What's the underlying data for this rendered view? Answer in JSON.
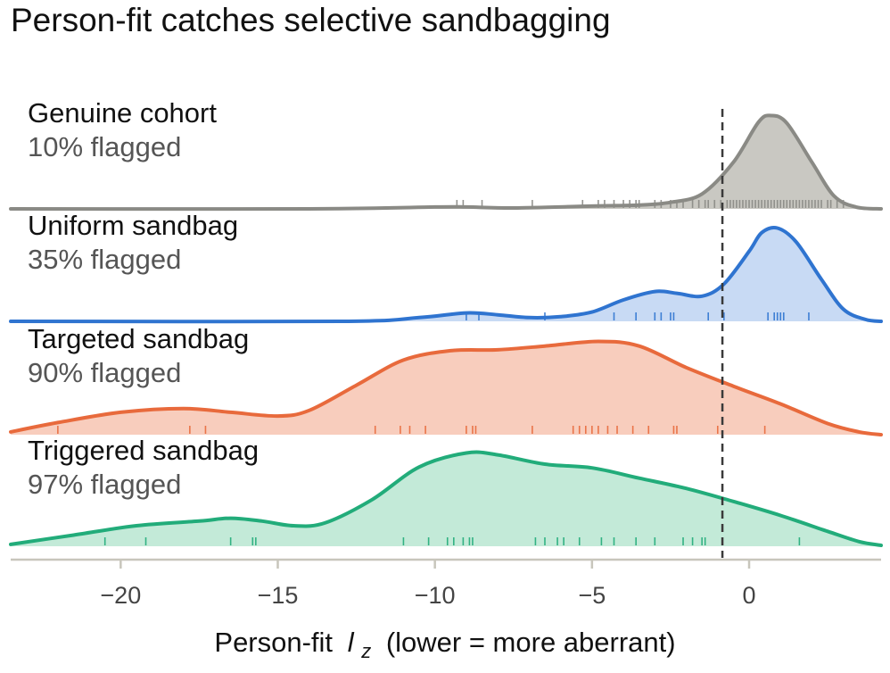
{
  "title": "Person-fit catches selective sandbagging",
  "chart_data": {
    "type": "ridgeline",
    "title": "Person-fit catches selective sandbagging",
    "xlabel": "Person-fit",
    "xlabel_symbol": "l",
    "xlabel_subscript": "z",
    "xlabel_suffix": "(lower = more aberrant)",
    "xlim": [
      -23.5,
      4.2
    ],
    "xticks": [
      -20,
      -15,
      -10,
      -5,
      0
    ],
    "xtick_labels": [
      "−20",
      "−15",
      "−10",
      "−5",
      "0"
    ],
    "threshold": -0.85,
    "threshold_style": "dashed",
    "grid": false,
    "series": [
      {
        "name": "Genuine cohort",
        "flag_label": "10% flagged",
        "color": "#8a8a85",
        "fill": "#c9c8c2",
        "peak_height": 0.95,
        "density": [
          [
            -23.5,
            0.0
          ],
          [
            -14,
            0.0
          ],
          [
            -10,
            0.02
          ],
          [
            -9,
            0.02
          ],
          [
            -7.5,
            0.01
          ],
          [
            -5,
            0.03
          ],
          [
            -3.5,
            0.04
          ],
          [
            -2.5,
            0.07
          ],
          [
            -1.5,
            0.16
          ],
          [
            -0.5,
            0.5
          ],
          [
            0.3,
            0.93
          ],
          [
            0.7,
            1.0
          ],
          [
            1.2,
            0.92
          ],
          [
            2.0,
            0.5
          ],
          [
            2.7,
            0.14
          ],
          [
            3.4,
            0.02
          ],
          [
            4.2,
            0.0
          ]
        ],
        "rug": [
          -9.3,
          -9.1,
          -8.5,
          -6.9,
          -5.3,
          -4.8,
          -4.6,
          -4.3,
          -4.0,
          -3.8,
          -3.6,
          -3.5,
          -3.0,
          -2.8,
          -2.5,
          -2.3,
          -2.1,
          -1.8,
          -1.6,
          -1.4,
          -1.3,
          -1.1,
          -0.9,
          -0.7,
          -0.6,
          -0.5,
          -0.4,
          -0.3,
          -0.2,
          -0.1,
          0.0,
          0.1,
          0.2,
          0.3,
          0.4,
          0.5,
          0.6,
          0.7,
          0.8,
          0.9,
          1.0,
          1.1,
          1.2,
          1.3,
          1.4,
          1.5,
          1.6,
          1.7,
          1.8,
          1.9,
          2.0,
          2.1,
          2.2,
          2.3,
          2.5,
          2.6,
          2.8,
          3.0
        ]
      },
      {
        "name": "Uniform sandbag",
        "flag_label": "35% flagged",
        "color": "#2f74d0",
        "fill": "#c8daf4",
        "peak_height": 0.95,
        "density": [
          [
            -23.5,
            0.0
          ],
          [
            -13,
            0.0
          ],
          [
            -10.5,
            0.04
          ],
          [
            -9,
            0.09
          ],
          [
            -8,
            0.07
          ],
          [
            -7,
            0.04
          ],
          [
            -6,
            0.05
          ],
          [
            -5,
            0.1
          ],
          [
            -4,
            0.23
          ],
          [
            -3,
            0.32
          ],
          [
            -2.3,
            0.3
          ],
          [
            -1.5,
            0.27
          ],
          [
            -0.8,
            0.4
          ],
          [
            0,
            0.75
          ],
          [
            0.4,
            0.95
          ],
          [
            0.9,
            1.0
          ],
          [
            1.5,
            0.85
          ],
          [
            2.3,
            0.45
          ],
          [
            3.0,
            0.13
          ],
          [
            3.7,
            0.02
          ],
          [
            4.2,
            0.0
          ]
        ],
        "rug": [
          -9.0,
          -8.6,
          -6.5,
          -4.3,
          -3.6,
          -3.0,
          -2.8,
          -2.5,
          -2.4,
          -1.3,
          -0.8,
          0.6,
          0.8,
          0.9,
          1.0,
          1.1,
          1.9
        ]
      },
      {
        "name": "Targeted sandbag",
        "flag_label": "90% flagged",
        "color": "#e86a3c",
        "fill": "#f8cdbd",
        "peak_height": 0.95,
        "density": [
          [
            -23.5,
            0.03
          ],
          [
            -22,
            0.13
          ],
          [
            -20,
            0.24
          ],
          [
            -18,
            0.28
          ],
          [
            -16.5,
            0.24
          ],
          [
            -15,
            0.2
          ],
          [
            -14,
            0.26
          ],
          [
            -12.5,
            0.53
          ],
          [
            -11,
            0.8
          ],
          [
            -9.5,
            0.9
          ],
          [
            -8,
            0.91
          ],
          [
            -6.5,
            0.95
          ],
          [
            -4.8,
            1.0
          ],
          [
            -3.5,
            0.95
          ],
          [
            -2,
            0.72
          ],
          [
            -0.5,
            0.52
          ],
          [
            1,
            0.33
          ],
          [
            2.5,
            0.12
          ],
          [
            3.5,
            0.03
          ],
          [
            4.2,
            0.0
          ]
        ],
        "rug": [
          -22.0,
          -17.8,
          -17.3,
          -11.9,
          -11.1,
          -10.8,
          -10.3,
          -9.0,
          -8.8,
          -8.7,
          -6.9,
          -5.6,
          -5.4,
          -5.2,
          -5.0,
          -4.8,
          -4.5,
          -4.2,
          -3.7,
          -3.2,
          -2.4,
          -2.3,
          -1.0,
          0.5
        ]
      },
      {
        "name": "Triggered sandbag",
        "flag_label": "97% flagged",
        "color": "#22ac7a",
        "fill": "#c3ead8",
        "peak_height": 0.95,
        "density": [
          [
            -23.5,
            0.02
          ],
          [
            -21.5,
            0.12
          ],
          [
            -19.5,
            0.22
          ],
          [
            -17.5,
            0.27
          ],
          [
            -16.5,
            0.3
          ],
          [
            -15.5,
            0.27
          ],
          [
            -14.5,
            0.22
          ],
          [
            -13.5,
            0.25
          ],
          [
            -12,
            0.5
          ],
          [
            -10.5,
            0.85
          ],
          [
            -9,
            1.0
          ],
          [
            -8,
            0.98
          ],
          [
            -6.5,
            0.88
          ],
          [
            -5,
            0.84
          ],
          [
            -3.5,
            0.73
          ],
          [
            -2,
            0.62
          ],
          [
            -0.5,
            0.48
          ],
          [
            1,
            0.33
          ],
          [
            2.5,
            0.16
          ],
          [
            3.5,
            0.05
          ],
          [
            4.2,
            0.01
          ]
        ],
        "rug": [
          -20.5,
          -19.2,
          -16.5,
          -15.8,
          -15.7,
          -11.0,
          -10.2,
          -9.6,
          -9.4,
          -9.1,
          -8.9,
          -8.8,
          -6.8,
          -6.5,
          -6.1,
          -5.9,
          -5.4,
          -4.7,
          -4.3,
          -3.6,
          -3.0,
          -2.1,
          -1.8,
          -1.5,
          -1.4,
          1.6
        ]
      }
    ]
  }
}
